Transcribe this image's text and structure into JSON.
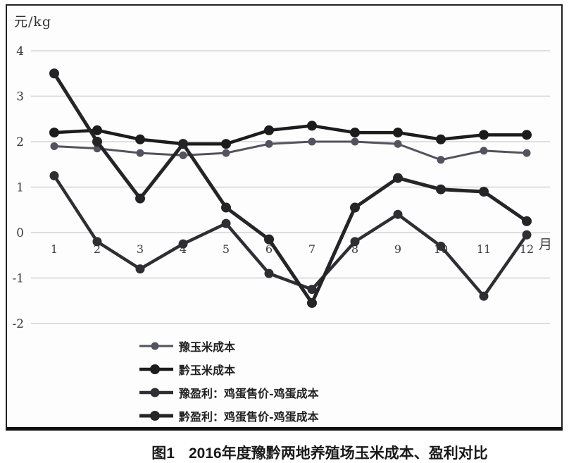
{
  "figure": {
    "y_axis_unit": "元/kg",
    "caption_prefix": "图1",
    "caption_title": "2016年度豫黔两地养殖场玉米成本、盈利对比"
  },
  "colors": {
    "grid": "#d9d9d9",
    "tick_text": "#3c3c3c",
    "frame": "#222222",
    "caption_text": "#1a1a1a"
  },
  "chart_data": {
    "type": "line",
    "title": "2016年度豫黔两地养殖场玉米成本、盈利对比",
    "x": [
      1,
      2,
      3,
      4,
      5,
      6,
      7,
      8,
      9,
      10,
      11,
      12
    ],
    "xlabel": "月",
    "ylabel": "元/kg",
    "ylim": [
      -2,
      4
    ],
    "yticks": [
      4,
      3,
      2,
      1,
      0,
      -1,
      -2
    ],
    "grid": true,
    "legend_position": "bottom-left-stacked",
    "series": [
      {
        "name": "豫玉米成本",
        "color": "#53535f",
        "line_width": 3,
        "marker_radius": 5.5,
        "values": [
          1.9,
          1.85,
          1.75,
          1.7,
          1.75,
          1.95,
          2.0,
          2.0,
          1.95,
          1.6,
          1.8,
          1.75
        ]
      },
      {
        "name": "黔玉米成本",
        "color": "#1c1c1c",
        "line_width": 4.5,
        "marker_radius": 7,
        "values": [
          2.2,
          2.25,
          2.05,
          1.95,
          1.95,
          2.25,
          2.35,
          2.2,
          2.2,
          2.05,
          2.15,
          2.15
        ]
      },
      {
        "name": "豫盈利：鸡蛋售价-鸡蛋成本",
        "color": "#2e2e33",
        "line_width": 4.5,
        "marker_radius": 6.5,
        "values": [
          1.25,
          -0.2,
          -0.8,
          -0.25,
          0.2,
          -0.9,
          -1.25,
          -0.2,
          0.4,
          -0.3,
          -1.4,
          -0.05
        ]
      },
      {
        "name": "黔盈利：鸡蛋售价-鸡蛋成本",
        "color": "#252528",
        "line_width": 5,
        "marker_radius": 7,
        "values": [
          3.5,
          2.0,
          0.75,
          1.95,
          0.55,
          -0.15,
          -1.55,
          0.55,
          1.2,
          0.95,
          0.9,
          0.25
        ]
      }
    ]
  }
}
